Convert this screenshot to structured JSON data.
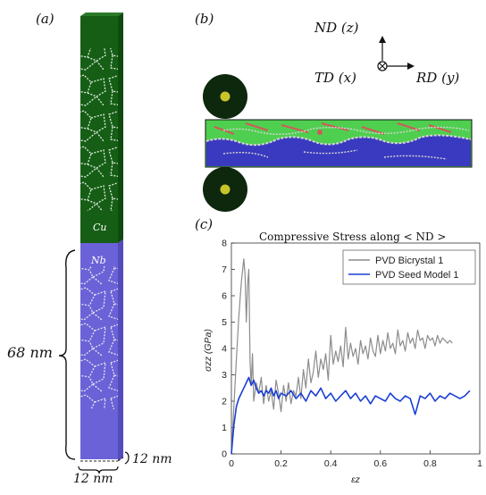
{
  "panel_a": {
    "label": "(a)",
    "cu_label": "Cu",
    "nb_label": "Nb",
    "height_label": "68 nm",
    "width_label": "12 nm",
    "depth_label": "12 nm",
    "colors": {
      "cu": "#165e16",
      "nb": "#6b62d8",
      "grain_boundary": "#d9e6d9"
    }
  },
  "panel_b": {
    "label": "(b)",
    "nd_label": "ND (z)",
    "td_label": "TD (x)",
    "rd_label": "RD (y)",
    "colors": {
      "roller": "#0d280d",
      "roller_center": "#c9c42a",
      "cu": "#4fcf4f",
      "nb": "#3a3ac0",
      "gb": "#d6d6d6",
      "twin": "#d05a5a"
    }
  },
  "panel_c": {
    "label": "(c)",
    "chart_data": {
      "type": "line",
      "title": "Compressive Stress along < ND >",
      "xlabel": "εz",
      "ylabel": "σzz (GPa)",
      "xlim": [
        0,
        1
      ],
      "ylim": [
        0,
        8
      ],
      "xticks": [
        "0",
        "0.2",
        "0.4",
        "0.6",
        "0.8",
        "1"
      ],
      "yticks": [
        "0",
        "1",
        "2",
        "3",
        "4",
        "5",
        "6",
        "7",
        "8"
      ],
      "legend_position": "top-right",
      "series": [
        {
          "name": "PVD Bicrystal 1",
          "color": "#8c8c8c",
          "x": [
            0,
            0.01,
            0.02,
            0.03,
            0.04,
            0.05,
            0.055,
            0.06,
            0.065,
            0.07,
            0.075,
            0.08,
            0.085,
            0.09,
            0.1,
            0.11,
            0.12,
            0.13,
            0.14,
            0.15,
            0.16,
            0.17,
            0.18,
            0.19,
            0.2,
            0.21,
            0.22,
            0.23,
            0.24,
            0.25,
            0.26,
            0.27,
            0.28,
            0.29,
            0.3,
            0.31,
            0.32,
            0.33,
            0.34,
            0.35,
            0.36,
            0.37,
            0.38,
            0.39,
            0.4,
            0.41,
            0.42,
            0.43,
            0.44,
            0.45,
            0.46,
            0.47,
            0.48,
            0.49,
            0.5,
            0.51,
            0.52,
            0.53,
            0.54,
            0.55,
            0.56,
            0.57,
            0.58,
            0.59,
            0.6,
            0.61,
            0.62,
            0.63,
            0.64,
            0.65,
            0.66,
            0.67,
            0.68,
            0.69,
            0.7,
            0.71,
            0.72,
            0.73,
            0.74,
            0.75,
            0.76,
            0.77,
            0.78,
            0.79,
            0.8,
            0.81,
            0.82,
            0.83,
            0.84,
            0.85,
            0.86,
            0.87,
            0.88,
            0.89
          ],
          "y": [
            0,
            1.8,
            3.6,
            5.2,
            6.5,
            7.4,
            6.8,
            5.0,
            6.4,
            7.0,
            3.5,
            2.6,
            3.8,
            2.0,
            2.7,
            2.3,
            2.9,
            1.9,
            2.6,
            2.0,
            2.4,
            1.7,
            2.8,
            2.3,
            1.6,
            2.6,
            2.0,
            2.7,
            1.9,
            2.4,
            2.2,
            2.9,
            2.1,
            3.2,
            2.5,
            3.6,
            2.7,
            3.1,
            3.9,
            2.9,
            3.6,
            3.2,
            3.8,
            2.8,
            4.5,
            3.4,
            3.9,
            3.5,
            4.1,
            3.3,
            4.8,
            3.6,
            4.2,
            3.7,
            4.0,
            3.4,
            4.3,
            3.8,
            4.1,
            3.6,
            4.4,
            3.9,
            3.7,
            4.5,
            3.8,
            4.3,
            3.9,
            4.6,
            4.0,
            4.2,
            3.8,
            4.7,
            4.1,
            4.3,
            3.9,
            4.6,
            4.2,
            4.4,
            4.0,
            4.7,
            4.3,
            4.4,
            4.0,
            4.5,
            4.3,
            4.4,
            4.1,
            4.5,
            4.2,
            4.4,
            4.3,
            4.2,
            4.3,
            4.2
          ]
        },
        {
          "name": "PVD Seed Model 1",
          "color": "#1a3fd6",
          "x": [
            0,
            0.01,
            0.02,
            0.03,
            0.04,
            0.05,
            0.06,
            0.07,
            0.08,
            0.09,
            0.1,
            0.11,
            0.12,
            0.13,
            0.14,
            0.15,
            0.16,
            0.17,
            0.18,
            0.19,
            0.2,
            0.22,
            0.24,
            0.26,
            0.28,
            0.3,
            0.32,
            0.34,
            0.36,
            0.38,
            0.4,
            0.42,
            0.44,
            0.46,
            0.48,
            0.5,
            0.52,
            0.54,
            0.56,
            0.58,
            0.6,
            0.62,
            0.64,
            0.66,
            0.68,
            0.7,
            0.72,
            0.74,
            0.76,
            0.78,
            0.8,
            0.82,
            0.84,
            0.86,
            0.88,
            0.9,
            0.92,
            0.94,
            0.96
          ],
          "y": [
            0,
            1.1,
            1.8,
            2.1,
            2.3,
            2.5,
            2.7,
            2.9,
            2.6,
            2.8,
            2.5,
            2.3,
            2.4,
            2.2,
            2.4,
            2.3,
            2.5,
            2.2,
            2.4,
            2.1,
            2.3,
            2.2,
            2.4,
            2.1,
            2.3,
            2.0,
            2.4,
            2.2,
            2.5,
            2.1,
            2.3,
            2.0,
            2.2,
            2.4,
            2.1,
            2.3,
            2.0,
            2.2,
            1.9,
            2.2,
            2.1,
            2.0,
            2.3,
            2.1,
            2.0,
            2.2,
            2.1,
            1.5,
            2.2,
            2.1,
            2.3,
            2.0,
            2.2,
            2.1,
            2.3,
            2.2,
            2.1,
            2.2,
            2.4
          ]
        }
      ]
    }
  }
}
